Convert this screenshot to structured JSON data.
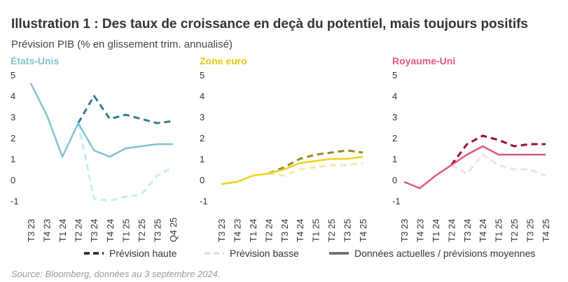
{
  "title": "Illustration 1 : Des taux de croissance en deçà du potentiel, mais toujours positifs",
  "subtitle": "Prévision PIB (% en glissement trim. annualisé)",
  "source": "Source: Bloomberg, données au 3 septembre 2024.",
  "legend": [
    {
      "name": "Prévision haute",
      "color": "#222222",
      "dash": true
    },
    {
      "name": "Prévision basse",
      "color": "#dddddd",
      "dash": true
    },
    {
      "name": "Données actuelles / prévisions moyennes",
      "color": "#666666",
      "dash": false
    }
  ],
  "chart_data": [
    {
      "type": "line",
      "title": "États-Unis",
      "title_color": "#7fc4cf",
      "categories": [
        "T3 23",
        "T4 23",
        "T1 24",
        "T2 24",
        "T3 24",
        "T4 24",
        "T1 25",
        "T2 25",
        "T3 25",
        "Q4 25"
      ],
      "ylim": [
        -1,
        5
      ],
      "yticks": [
        -1,
        0,
        1,
        2,
        3,
        4,
        5
      ],
      "series": [
        {
          "color": "#2f7f92",
          "dash": true,
          "values": [
            null,
            null,
            null,
            3.0,
            4.3,
            3.2,
            3.4,
            3.2,
            3.0,
            3.1
          ]
        },
        {
          "color": "#c4eef3",
          "dash": true,
          "values": [
            null,
            null,
            null,
            3.0,
            -0.6,
            -0.7,
            -0.5,
            -0.4,
            0.5,
            0.9
          ]
        },
        {
          "color": "#7fc4cf",
          "dash": false,
          "values": [
            4.9,
            3.4,
            1.4,
            3.0,
            1.7,
            1.4,
            1.8,
            1.9,
            2.0,
            2.0
          ]
        }
      ]
    },
    {
      "type": "line",
      "title": "Zone euro",
      "title_color": "#e8c80e",
      "categories": [
        "T3 23",
        "T4 23",
        "T1 24",
        "T2 24",
        "T3 24",
        "T4 24",
        "T1 25",
        "T2 25",
        "T3 25",
        "T4 25"
      ],
      "ylim": [
        -1,
        5
      ],
      "yticks": [
        -1,
        0,
        1,
        2,
        3,
        4,
        5
      ],
      "series": [
        {
          "color": "#9a8a1e",
          "dash": true,
          "values": [
            null,
            null,
            null,
            0.6,
            0.9,
            1.3,
            1.5,
            1.6,
            1.7,
            1.6
          ]
        },
        {
          "color": "#f5eaa0",
          "dash": true,
          "values": [
            null,
            null,
            null,
            0.6,
            0.5,
            0.8,
            0.9,
            1.0,
            1.0,
            1.1
          ]
        },
        {
          "color": "#f2d21b",
          "dash": false,
          "values": [
            0.1,
            0.2,
            0.5,
            0.6,
            0.8,
            1.1,
            1.2,
            1.3,
            1.3,
            1.4
          ]
        }
      ]
    },
    {
      "type": "line",
      "title": "Royaume-Uni",
      "title_color": "#e0577a",
      "categories": [
        "T3 23",
        "T4 23",
        "T1 24",
        "T2 24",
        "T3 24",
        "T4 24",
        "T1 25",
        "T2 25",
        "T3 25",
        "T4 25"
      ],
      "ylim": [
        -1,
        5
      ],
      "yticks": [
        -1,
        0,
        1,
        2,
        3,
        4,
        5
      ],
      "series": [
        {
          "color": "#9b0b3c",
          "dash": true,
          "values": [
            null,
            null,
            null,
            1.0,
            2.0,
            2.4,
            2.2,
            1.9,
            2.0,
            2.0
          ]
        },
        {
          "color": "#f7dbe2",
          "dash": true,
          "values": [
            null,
            null,
            null,
            1.0,
            0.6,
            1.5,
            1.0,
            0.8,
            0.8,
            0.5
          ]
        },
        {
          "color": "#e0577a",
          "dash": false,
          "values": [
            0.2,
            -0.1,
            0.5,
            1.0,
            1.5,
            1.9,
            1.5,
            1.5,
            1.5,
            1.5
          ]
        }
      ]
    }
  ]
}
